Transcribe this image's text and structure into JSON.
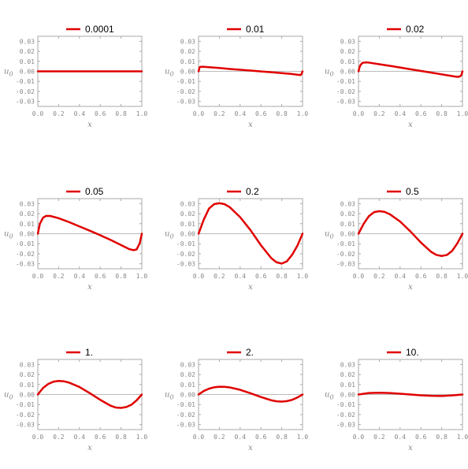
{
  "chart_data": {
    "type": "line",
    "layout": "3x3 grid of small multiples",
    "shared": {
      "xlabel": "x",
      "ylabel": "u_0",
      "ylabel_sub": "0",
      "xlim": [
        0,
        1
      ],
      "ylim": [
        -0.035,
        0.035
      ],
      "xticks": [
        "0.0",
        "0.2",
        "0.4",
        "0.6",
        "0.8",
        "1.0"
      ],
      "yticks": [
        "0.03",
        "0.02",
        "0.01",
        "0.00",
        "-0.01",
        "-0.02",
        "-0.03"
      ],
      "line_color": "#e00000",
      "zero_line_color": "#bbbbbb",
      "frame_color": "#aaaaaa",
      "legend_placement": "top-center"
    },
    "panels": [
      {
        "legend": "0.0001",
        "series": [
          {
            "name": "0.0001",
            "x": [
              0,
              0.1,
              0.2,
              0.3,
              0.4,
              0.5,
              0.6,
              0.7,
              0.8,
              0.9,
              1.0
            ],
            "y": [
              0,
              0,
              0,
              0,
              0,
              0,
              0,
              0,
              0,
              0,
              0
            ]
          }
        ]
      },
      {
        "legend": "0.01",
        "series": [
          {
            "name": "0.01",
            "x": [
              0,
              0.01,
              0.02,
              0.05,
              0.1,
              0.2,
              0.3,
              0.4,
              0.5,
              0.6,
              0.7,
              0.8,
              0.9,
              0.95,
              0.98,
              0.99,
              1.0
            ],
            "y": [
              0,
              0.004,
              0.0045,
              0.0045,
              0.0041,
              0.0033,
              0.0024,
              0.0016,
              0.0008,
              -0.0001,
              -0.0009,
              -0.0018,
              -0.0027,
              -0.0033,
              -0.0037,
              -0.0028,
              0
            ]
          }
        ]
      },
      {
        "legend": "0.02",
        "series": [
          {
            "name": "0.02",
            "x": [
              0,
              0.01,
              0.02,
              0.04,
              0.07,
              0.1,
              0.2,
              0.3,
              0.4,
              0.5,
              0.6,
              0.7,
              0.8,
              0.9,
              0.93,
              0.96,
              0.98,
              0.99,
              1.0
            ],
            "y": [
              0,
              0.004,
              0.0065,
              0.0085,
              0.0089,
              0.0087,
              0.0071,
              0.0055,
              0.0038,
              0.0021,
              0.0004,
              -0.0013,
              -0.003,
              -0.0047,
              -0.0052,
              -0.0055,
              -0.0048,
              -0.0036,
              0
            ]
          }
        ]
      },
      {
        "legend": "0.05",
        "series": [
          {
            "name": "0.05",
            "x": [
              0,
              0.02,
              0.05,
              0.08,
              0.12,
              0.2,
              0.3,
              0.4,
              0.5,
              0.6,
              0.7,
              0.8,
              0.88,
              0.92,
              0.95,
              0.98,
              1.0
            ],
            "y": [
              0,
              0.01,
              0.016,
              0.0178,
              0.0177,
              0.0155,
              0.0116,
              0.0073,
              0.003,
              -0.0015,
              -0.0062,
              -0.0113,
              -0.0154,
              -0.0164,
              -0.0157,
              -0.0095,
              0
            ]
          }
        ]
      },
      {
        "legend": "0.2",
        "series": [
          {
            "name": "0.2",
            "x": [
              0,
              0.05,
              0.1,
              0.15,
              0.2,
              0.25,
              0.3,
              0.4,
              0.5,
              0.6,
              0.7,
              0.75,
              0.8,
              0.85,
              0.9,
              0.95,
              1.0
            ],
            "y": [
              0,
              0.014,
              0.025,
              0.0295,
              0.0305,
              0.0295,
              0.0265,
              0.0165,
              0.0035,
              -0.0115,
              -0.0245,
              -0.0285,
              -0.0298,
              -0.0275,
              -0.021,
              -0.012,
              0
            ]
          }
        ]
      },
      {
        "legend": "0.5",
        "series": [
          {
            "name": "0.5",
            "x": [
              0,
              0.05,
              0.1,
              0.15,
              0.2,
              0.25,
              0.3,
              0.4,
              0.5,
              0.6,
              0.7,
              0.75,
              0.8,
              0.85,
              0.9,
              0.95,
              1.0
            ],
            "y": [
              0,
              0.01,
              0.0175,
              0.0215,
              0.0225,
              0.0218,
              0.0195,
              0.0122,
              0.0022,
              -0.0088,
              -0.0182,
              -0.0212,
              -0.0222,
              -0.0212,
              -0.0172,
              -0.0097,
              0
            ]
          }
        ]
      },
      {
        "legend": "1.",
        "series": [
          {
            "name": "1.",
            "x": [
              0,
              0.05,
              0.1,
              0.15,
              0.2,
              0.25,
              0.3,
              0.4,
              0.5,
              0.6,
              0.7,
              0.75,
              0.8,
              0.85,
              0.9,
              0.95,
              1.0
            ],
            "y": [
              0,
              0.0065,
              0.0105,
              0.0128,
              0.0136,
              0.0132,
              0.0119,
              0.0075,
              0.0013,
              -0.0053,
              -0.0112,
              -0.013,
              -0.0134,
              -0.0125,
              -0.0102,
              -0.0058,
              0
            ]
          }
        ]
      },
      {
        "legend": "2.",
        "series": [
          {
            "name": "2.",
            "x": [
              0,
              0.05,
              0.1,
              0.15,
              0.2,
              0.25,
              0.3,
              0.4,
              0.5,
              0.6,
              0.7,
              0.75,
              0.8,
              0.85,
              0.9,
              0.95,
              1.0
            ],
            "y": [
              0,
              0.0035,
              0.0058,
              0.0072,
              0.0078,
              0.0077,
              0.0071,
              0.0047,
              0.0012,
              -0.0025,
              -0.0058,
              -0.0068,
              -0.0071,
              -0.0066,
              -0.0053,
              -0.003,
              0
            ]
          }
        ]
      },
      {
        "legend": "10.",
        "series": [
          {
            "name": "10.",
            "x": [
              0,
              0.1,
              0.2,
              0.3,
              0.4,
              0.5,
              0.6,
              0.7,
              0.8,
              0.9,
              1.0
            ],
            "y": [
              0,
              0.0015,
              0.0018,
              0.0015,
              0.0008,
              0,
              -0.0008,
              -0.0013,
              -0.0015,
              -0.0009,
              0
            ]
          }
        ]
      }
    ]
  }
}
